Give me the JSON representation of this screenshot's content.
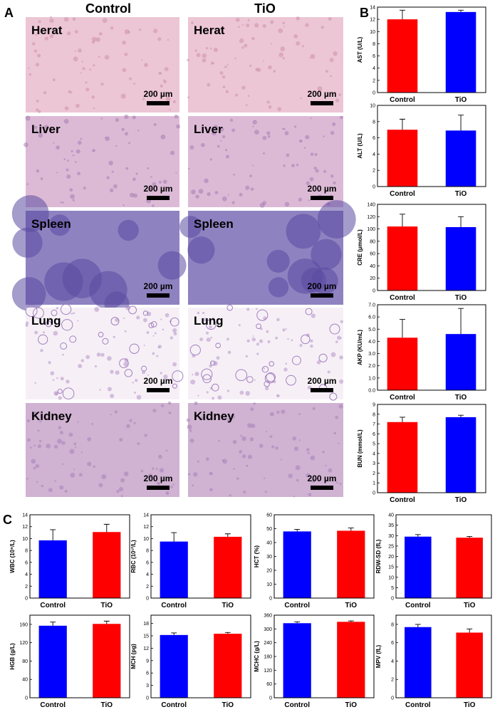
{
  "figure": {
    "panel_labels": [
      "A",
      "B",
      "C"
    ],
    "column_headers": [
      "Control",
      "TiO"
    ],
    "tissues": [
      "Herat",
      "Liver",
      "Spleen",
      "Lung",
      "Kidney"
    ],
    "scale_bar": "200 µm"
  },
  "chart_data": [
    {
      "type": "bar",
      "y_label": "AST (U/L)",
      "categories": [
        "Control",
        "TiO"
      ],
      "values": [
        12.0,
        13.2
      ],
      "errors": [
        1.5,
        0.3
      ],
      "colors": [
        "#ff0000",
        "#0000ff"
      ],
      "ylim": [
        0,
        14
      ],
      "yticks": [
        0,
        2,
        4,
        6,
        8,
        10,
        12,
        14
      ]
    },
    {
      "type": "bar",
      "y_label": "ALT (U/L)",
      "categories": [
        "Control",
        "TiO"
      ],
      "values": [
        7.0,
        6.9
      ],
      "errors": [
        1.3,
        1.9
      ],
      "colors": [
        "#ff0000",
        "#0000ff"
      ],
      "ylim": [
        0,
        10
      ],
      "yticks": [
        0,
        2,
        4,
        6,
        8,
        10
      ]
    },
    {
      "type": "bar",
      "y_label": "CRE (μmol/L)",
      "categories": [
        "Control",
        "TiO"
      ],
      "values": [
        104,
        103
      ],
      "errors": [
        20,
        17
      ],
      "colors": [
        "#ff0000",
        "#0000ff"
      ],
      "ylim": [
        0,
        140
      ],
      "yticks": [
        0,
        20,
        40,
        60,
        80,
        100,
        120,
        140
      ]
    },
    {
      "type": "bar",
      "y_label": "AKP (KU/mL)",
      "categories": [
        "Control",
        "TiO"
      ],
      "values": [
        4.3,
        4.6
      ],
      "errors": [
        1.5,
        2.1
      ],
      "colors": [
        "#ff0000",
        "#0000ff"
      ],
      "ylim": [
        0,
        7
      ],
      "yticks": [
        {
          "value": 0,
          "label": "0.0"
        },
        {
          "value": 1,
          "label": "1.0"
        },
        {
          "value": 2,
          "label": "2.0"
        },
        {
          "value": 3,
          "label": "3.0"
        },
        {
          "value": 4,
          "label": "4.0"
        },
        {
          "value": 5,
          "label": "5.0"
        },
        {
          "value": 6,
          "label": "6.0"
        },
        {
          "value": 7,
          "label": "7.0"
        }
      ]
    },
    {
      "type": "bar",
      "y_label": "BUN (mmol/L)",
      "categories": [
        "Control",
        "TiO"
      ],
      "values": [
        7.2,
        7.7
      ],
      "errors": [
        0.5,
        0.2
      ],
      "colors": [
        "#ff0000",
        "#0000ff"
      ],
      "ylim": [
        0,
        9
      ],
      "yticks": [
        0,
        1,
        2,
        3,
        4,
        5,
        6,
        7,
        8,
        9
      ]
    },
    {
      "type": "bar",
      "y_label": "WBC (10⁹/L)",
      "categories": [
        "Control",
        "TiO"
      ],
      "values": [
        9.7,
        11.1
      ],
      "errors": [
        1.8,
        1.3
      ],
      "colors": [
        "#0000ff",
        "#ff0000"
      ],
      "ylim": [
        0,
        14
      ],
      "yticks": [
        0,
        2,
        4,
        6,
        8,
        10,
        12,
        14
      ]
    },
    {
      "type": "bar",
      "y_label": "RBC (10¹²/L)",
      "categories": [
        "Control",
        "TiO"
      ],
      "values": [
        9.5,
        10.3
      ],
      "errors": [
        1.5,
        0.5
      ],
      "colors": [
        "#0000ff",
        "#ff0000"
      ],
      "ylim": [
        0,
        14
      ],
      "yticks": [
        0,
        2,
        4,
        6,
        8,
        10,
        12,
        14
      ]
    },
    {
      "type": "bar",
      "y_label": "HCT (%)",
      "categories": [
        "Control",
        "TiO"
      ],
      "values": [
        48,
        48.5
      ],
      "errors": [
        1.5,
        2
      ],
      "colors": [
        "#0000ff",
        "#ff0000"
      ],
      "ylim": [
        0,
        60
      ],
      "yticks": [
        0,
        10,
        20,
        30,
        40,
        50,
        60
      ]
    },
    {
      "type": "bar",
      "y_label": "RDW-SD (fL)",
      "categories": [
        "Control",
        "TiO"
      ],
      "values": [
        29.5,
        29
      ],
      "errors": [
        1,
        0.6
      ],
      "colors": [
        "#0000ff",
        "#ff0000"
      ],
      "ylim": [
        0,
        40
      ],
      "yticks": [
        0,
        5,
        10,
        15,
        20,
        25,
        30,
        35,
        40
      ]
    },
    {
      "type": "bar",
      "y_label": "HGB (g/L)",
      "categories": [
        "Control",
        "TiO"
      ],
      "values": [
        157,
        161
      ],
      "errors": [
        8,
        6
      ],
      "colors": [
        "#0000ff",
        "#ff0000"
      ],
      "ylim": [
        0,
        180
      ],
      "yticks": [
        0,
        40,
        80,
        120,
        160
      ]
    },
    {
      "type": "bar",
      "y_label": "MCH (pg)",
      "categories": [
        "Control",
        "TiO"
      ],
      "values": [
        15.2,
        15.5
      ],
      "errors": [
        0.5,
        0.3
      ],
      "colors": [
        "#0000ff",
        "#ff0000"
      ],
      "ylim": [
        0,
        20
      ],
      "yticks": [
        0,
        3,
        6,
        9,
        12,
        15,
        18
      ]
    },
    {
      "type": "bar",
      "y_label": "MCHC (g/L)",
      "categories": [
        "Control",
        "TiO"
      ],
      "values": [
        325,
        331
      ],
      "errors": [
        6,
        4
      ],
      "colors": [
        "#0000ff",
        "#ff0000"
      ],
      "ylim": [
        0,
        360
      ],
      "yticks": [
        0,
        60,
        120,
        180,
        240,
        300,
        360
      ]
    },
    {
      "type": "bar",
      "y_label": "MPV (fL)",
      "categories": [
        "Control",
        "TiO"
      ],
      "values": [
        7.7,
        7.1
      ],
      "errors": [
        0.3,
        0.4
      ],
      "colors": [
        "#0000ff",
        "#ff0000"
      ],
      "ylim": [
        0,
        9
      ],
      "yticks": [
        0,
        2,
        4,
        6,
        8
      ]
    }
  ]
}
